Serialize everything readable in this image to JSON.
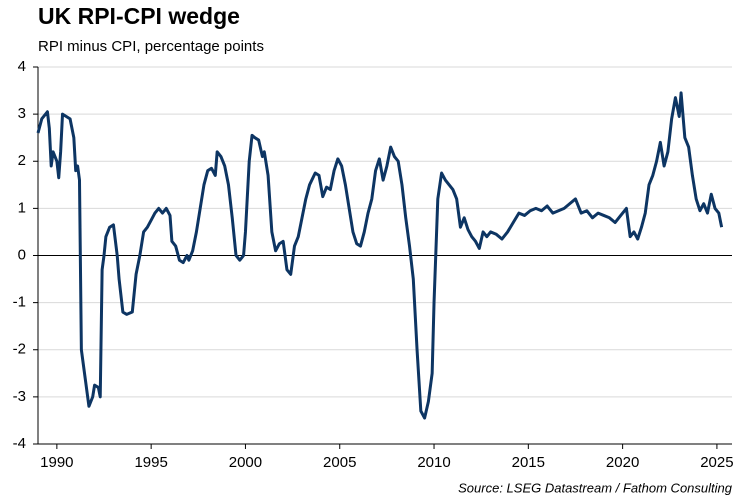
{
  "chart_data": {
    "type": "line",
    "title": "UK RPI-CPI wedge",
    "subtitle": "RPI minus CPI, percentage points",
    "source": "Source: LSEG Datastream / Fathom Consulting",
    "x": [
      1989.0,
      1989.2,
      1989.5,
      1989.6,
      1989.7,
      1989.8,
      1990.0,
      1990.1,
      1990.2,
      1990.3,
      1990.5,
      1990.7,
      1990.9,
      1991.0,
      1991.1,
      1991.2,
      1991.3,
      1991.5,
      1991.7,
      1991.9,
      1992.0,
      1992.2,
      1992.3,
      1992.4,
      1992.5,
      1992.6,
      1992.8,
      1993.0,
      1993.2,
      1993.3,
      1993.5,
      1993.7,
      1994.0,
      1994.2,
      1994.4,
      1994.6,
      1994.8,
      1995.0,
      1995.2,
      1995.4,
      1995.6,
      1995.8,
      1996.0,
      1996.1,
      1996.3,
      1996.5,
      1996.7,
      1996.9,
      1997.0,
      1997.2,
      1997.4,
      1997.6,
      1997.8,
      1998.0,
      1998.2,
      1998.4,
      1998.5,
      1998.7,
      1998.9,
      1999.1,
      1999.3,
      1999.5,
      1999.7,
      1999.9,
      2000.0,
      2000.2,
      2000.35,
      2000.5,
      2000.7,
      2000.9,
      2001.0,
      2001.2,
      2001.4,
      2001.6,
      2001.8,
      2002.0,
      2002.2,
      2002.4,
      2002.6,
      2002.8,
      2003.0,
      2003.2,
      2003.4,
      2003.7,
      2003.9,
      2004.1,
      2004.3,
      2004.5,
      2004.7,
      2004.9,
      2005.1,
      2005.3,
      2005.5,
      2005.7,
      2005.9,
      2006.1,
      2006.3,
      2006.5,
      2006.7,
      2006.9,
      2007.1,
      2007.3,
      2007.5,
      2007.7,
      2007.9,
      2008.1,
      2008.3,
      2008.5,
      2008.7,
      2008.9,
      2009.1,
      2009.3,
      2009.5,
      2009.7,
      2009.9,
      2010.0,
      2010.2,
      2010.4,
      2010.6,
      2010.8,
      2011.0,
      2011.2,
      2011.4,
      2011.6,
      2011.8,
      2012.0,
      2012.2,
      2012.4,
      2012.6,
      2012.8,
      2013.0,
      2013.3,
      2013.6,
      2013.9,
      2014.2,
      2014.5,
      2014.8,
      2015.1,
      2015.4,
      2015.7,
      2016.0,
      2016.3,
      2016.6,
      2016.9,
      2017.2,
      2017.5,
      2017.8,
      2018.1,
      2018.4,
      2018.7,
      2019.0,
      2019.3,
      2019.6,
      2019.9,
      2020.2,
      2020.4,
      2020.6,
      2020.8,
      2021.0,
      2021.2,
      2021.4,
      2021.6,
      2021.8,
      2022.0,
      2022.2,
      2022.4,
      2022.6,
      2022.8,
      2023.0,
      2023.1,
      2023.3,
      2023.5,
      2023.7,
      2023.9,
      2024.1,
      2024.3,
      2024.5,
      2024.7,
      2024.9,
      2025.1,
      2025.25
    ],
    "series": [
      {
        "name": "RPI minus CPI",
        "color": "#0d3563",
        "values": [
          2.6,
          2.9,
          3.05,
          2.7,
          1.9,
          2.2,
          2.0,
          1.65,
          2.2,
          3.0,
          2.95,
          2.9,
          2.5,
          1.8,
          1.9,
          1.6,
          -2.0,
          -2.6,
          -3.2,
          -3.0,
          -2.75,
          -2.8,
          -3.0,
          -0.3,
          0.0,
          0.4,
          0.6,
          0.65,
          0.0,
          -0.5,
          -1.2,
          -1.25,
          -1.2,
          -0.4,
          0.0,
          0.5,
          0.6,
          0.75,
          0.9,
          1.0,
          0.9,
          1.0,
          0.85,
          0.3,
          0.2,
          -0.1,
          -0.15,
          0.0,
          -0.1,
          0.1,
          0.5,
          1.0,
          1.5,
          1.8,
          1.85,
          1.7,
          2.2,
          2.1,
          1.9,
          1.5,
          0.8,
          0.0,
          -0.1,
          0.0,
          0.5,
          2.0,
          2.55,
          2.5,
          2.45,
          2.1,
          2.2,
          1.7,
          0.5,
          0.1,
          0.25,
          0.3,
          -0.3,
          -0.4,
          0.2,
          0.4,
          0.8,
          1.2,
          1.5,
          1.75,
          1.7,
          1.25,
          1.45,
          1.4,
          1.8,
          2.05,
          1.9,
          1.5,
          1.0,
          0.5,
          0.25,
          0.2,
          0.5,
          0.9,
          1.2,
          1.8,
          2.05,
          1.6,
          1.9,
          2.3,
          2.1,
          2.0,
          1.5,
          0.8,
          0.2,
          -0.5,
          -2.0,
          -3.3,
          -3.45,
          -3.1,
          -2.5,
          -1.0,
          1.2,
          1.75,
          1.6,
          1.5,
          1.4,
          1.2,
          0.6,
          0.8,
          0.55,
          0.4,
          0.3,
          0.15,
          0.5,
          0.4,
          0.5,
          0.45,
          0.35,
          0.5,
          0.7,
          0.9,
          0.85,
          0.95,
          1.0,
          0.95,
          1.05,
          0.9,
          0.95,
          1.0,
          1.1,
          1.2,
          0.9,
          0.95,
          0.8,
          0.9,
          0.85,
          0.8,
          0.7,
          0.85,
          1.0,
          0.4,
          0.5,
          0.35,
          0.6,
          0.9,
          1.5,
          1.7,
          2.0,
          2.4,
          1.9,
          2.2,
          2.9,
          3.35,
          2.95,
          3.45,
          2.5,
          2.3,
          1.7,
          1.2,
          0.95,
          1.1,
          0.9,
          1.3,
          1.0,
          0.9,
          0.6
        ]
      }
    ],
    "xlim": [
      1989.0,
      2025.8
    ],
    "xticks": [
      1990,
      1995,
      2000,
      2005,
      2010,
      2015,
      2020,
      2025
    ],
    "ylim": [
      -4,
      4
    ],
    "yticks": [
      -4,
      -3,
      -2,
      -1,
      0,
      1,
      2,
      3,
      4
    ],
    "grid": true
  }
}
